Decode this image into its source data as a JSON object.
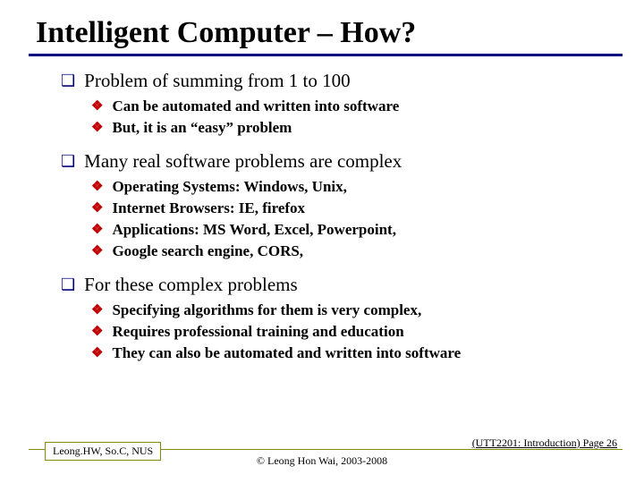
{
  "colors": {
    "accent_navy": "#000080",
    "accent_red": "#c00000",
    "olive": "#8a8a00",
    "text": "#000000",
    "bg": "#ffffff"
  },
  "title": "Intelligent Computer – How?",
  "sections": [
    {
      "heading": "Problem of summing from 1 to 100",
      "items": [
        "Can be automated and written into software",
        "But, it is an “easy” problem"
      ]
    },
    {
      "heading": "Many real software problems are complex",
      "items": [
        "Operating Systems: Windows, Unix,",
        "Internet Browsers: IE, firefox",
        "Applications: MS Word, Excel, Powerpoint,",
        "Google search engine, CORS,"
      ]
    },
    {
      "heading": "For these complex problems",
      "items": [
        "Specifying algorithms for them is very complex,",
        "Requires professional training and education",
        "They can also be automated and written into software"
      ]
    }
  ],
  "footer": {
    "left": "Leong.HW, So.C, NUS",
    "center": "© Leong Hon Wai, 2003-2008",
    "right": "(UTT2201: Introduction) Page 26"
  },
  "typography": {
    "title_fontsize": 34,
    "lvl1_fontsize": 21,
    "lvl2_fontsize": 17,
    "footer_fontsize": 12,
    "font_family": "Times New Roman"
  },
  "bullets": {
    "lvl1_glyph": "❑",
    "lvl2_glyph": "❖"
  }
}
